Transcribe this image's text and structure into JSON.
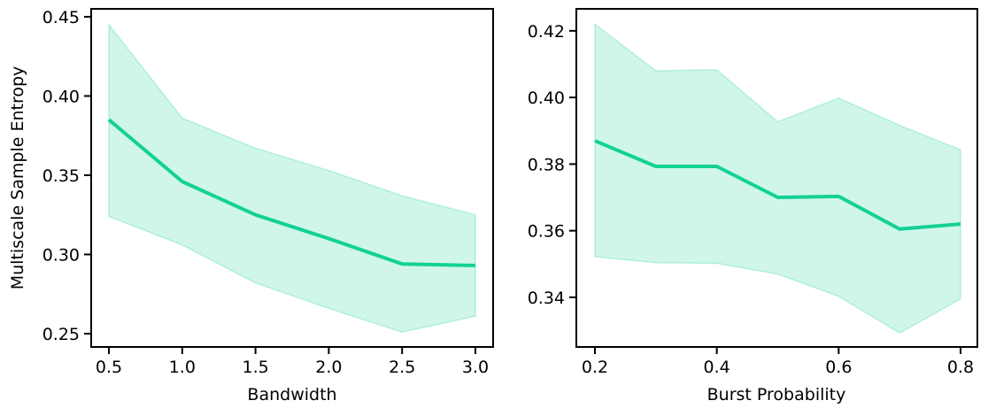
{
  "colors": {
    "line": "#12d195",
    "band": "#12d195"
  },
  "chart_data": [
    {
      "type": "line",
      "title": "",
      "xlabel": "Bandwidth",
      "ylabel": "Multiscale Sample Entropy",
      "x": [
        0.5,
        1.0,
        1.5,
        2.0,
        2.5,
        3.0
      ],
      "y": [
        0.385,
        0.346,
        0.325,
        0.31,
        0.294,
        0.293
      ],
      "ci_upper": [
        0.445,
        0.386,
        0.367,
        0.353,
        0.337,
        0.325
      ],
      "ci_lower": [
        0.324,
        0.306,
        0.282,
        0.266,
        0.251,
        0.261
      ],
      "xlim": [
        0.379,
        3.121
      ],
      "ylim": [
        0.2416,
        0.455
      ],
      "xticks": [
        0.5,
        1.0,
        1.5,
        2.0,
        2.5,
        3.0
      ],
      "xtick_labels": [
        "0.5",
        "1.0",
        "1.5",
        "2.0",
        "2.5",
        "3.0"
      ],
      "yticks": [
        0.25,
        0.3,
        0.35,
        0.4,
        0.45
      ],
      "ytick_labels": [
        "0.25",
        "0.30",
        "0.35",
        "0.40",
        "0.45"
      ],
      "grid": false
    },
    {
      "type": "line",
      "title": "",
      "xlabel": "Burst Probability",
      "ylabel": "",
      "x": [
        0.2,
        0.3,
        0.4,
        0.5,
        0.6,
        0.7,
        0.8
      ],
      "y": [
        0.387,
        0.3793,
        0.3793,
        0.37,
        0.3703,
        0.3605,
        0.362
      ],
      "ci_upper": [
        0.422,
        0.408,
        0.4083,
        0.3927,
        0.3998,
        0.3916,
        0.3843
      ],
      "ci_lower": [
        0.3522,
        0.3504,
        0.3502,
        0.347,
        0.3403,
        0.3293,
        0.3395
      ],
      "xlim": [
        0.1695,
        0.8276
      ],
      "ylim": [
        0.3251,
        0.4266
      ],
      "xticks": [
        0.2,
        0.4,
        0.6,
        0.8
      ],
      "xtick_labels": [
        "0.2",
        "0.4",
        "0.6",
        "0.8"
      ],
      "yticks": [
        0.34,
        0.36,
        0.38,
        0.4,
        0.42
      ],
      "ytick_labels": [
        "0.34",
        "0.36",
        "0.38",
        "0.40",
        "0.42"
      ],
      "grid": false
    }
  ]
}
